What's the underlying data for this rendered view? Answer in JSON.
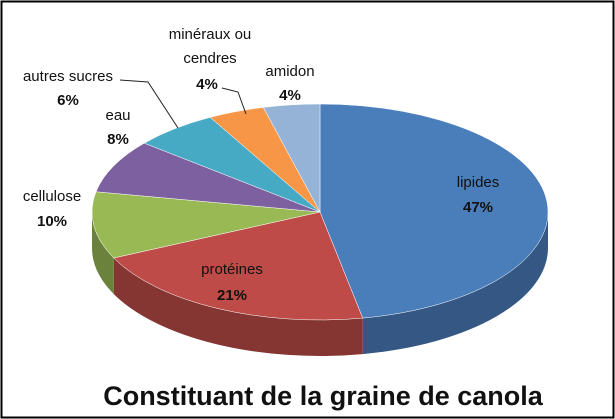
{
  "chart_data": {
    "type": "pie",
    "title": "Constituant de la graine de canola",
    "categories": [
      "lipides",
      "protéines",
      "cellulose",
      "eau",
      "autres sucres",
      "minéraux ou cendres",
      "amidon"
    ],
    "values": [
      47,
      21,
      10,
      8,
      6,
      4,
      4
    ],
    "value_labels": [
      "47%",
      "21%",
      "10%",
      "8%",
      "6%",
      "4%",
      "4%"
    ],
    "colors": [
      "#4a7ebb",
      "#be4b48",
      "#98b954",
      "#7d60a0",
      "#46aac5",
      "#f79646",
      "#95b3d7"
    ]
  }
}
